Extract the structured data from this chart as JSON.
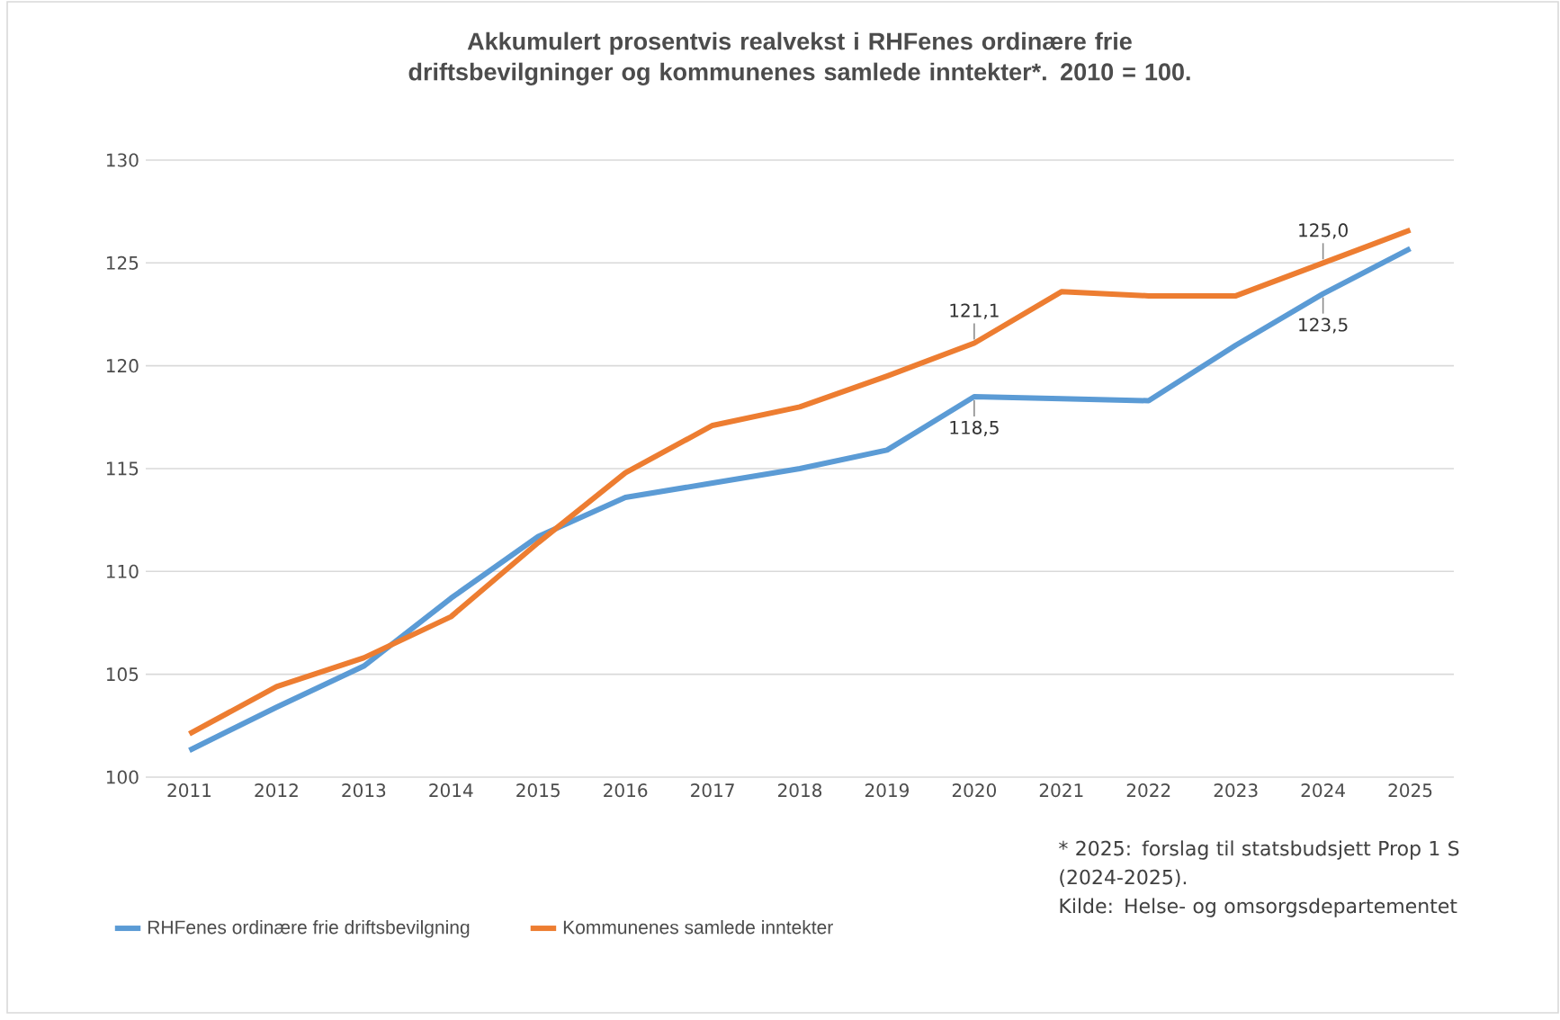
{
  "chart_data": {
    "type": "line",
    "title": "Akkumulert prosentvis realvekst i RHFenes ordinære frie driftsbevilgninger og kommunenes samlede inntekter*. 2010 = 100.",
    "categories": [
      "2011",
      "2012",
      "2013",
      "2014",
      "2015",
      "2016",
      "2017",
      "2018",
      "2019",
      "2020",
      "2021",
      "2022",
      "2023",
      "2024",
      "2025"
    ],
    "series": [
      {
        "name": "RHFenes ordinære frie driftsbevilgning",
        "color": "#5b9bd5",
        "values": [
          101.3,
          103.4,
          105.4,
          108.7,
          111.7,
          113.6,
          114.3,
          115.0,
          115.9,
          118.5,
          118.4,
          118.3,
          121.0,
          123.5,
          125.7
        ]
      },
      {
        "name": "Kommunenes samlede inntekter",
        "color": "#ed7d31",
        "values": [
          102.1,
          104.4,
          105.8,
          107.8,
          111.4,
          114.8,
          117.1,
          118.0,
          119.5,
          121.1,
          123.6,
          123.4,
          123.4,
          125.0,
          126.6
        ]
      }
    ],
    "ylim": [
      100,
      130
    ],
    "yticks": [
      100,
      105,
      110,
      115,
      120,
      125,
      130
    ],
    "grid": "y",
    "legend": "bottom",
    "marker": "none",
    "line_style": "solid",
    "annotations": [
      {
        "text": "121,1",
        "x": "2020",
        "y": 121.1
      },
      {
        "text": "118,5",
        "x": "2020",
        "y": 118.5
      },
      {
        "text": "125,0",
        "x": "2024",
        "y": 125.0
      },
      {
        "text": "123,5",
        "x": "2024",
        "y": 123.5
      },
      "* 2025: forslag til statsbudsjett Prop 1 S (2024-2025).",
      "Kilde: Helse- og omsorgsdepartementet"
    ]
  }
}
